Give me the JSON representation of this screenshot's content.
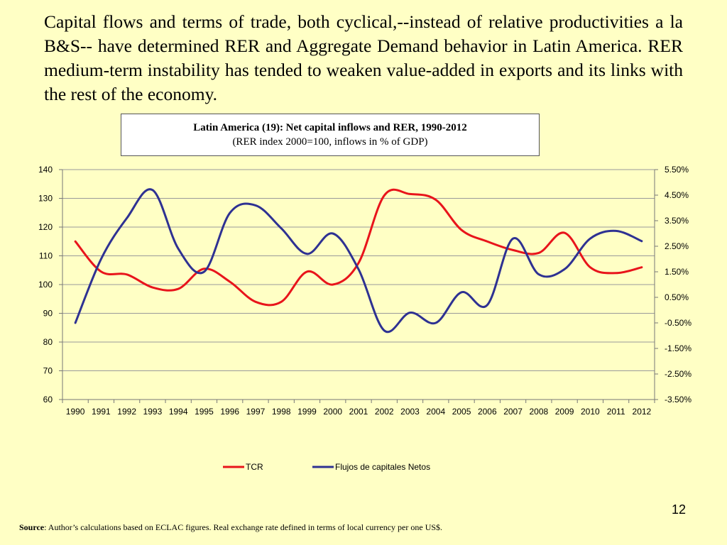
{
  "slide": {
    "intro_text": "Capital flows and terms of trade, both cyclical,--instead of relative productivities a la B&S-- have determined RER and Aggregate Demand behavior in Latin America. RER medium-term instability has tended to weaken value-added in exports and its links with the rest of the economy.",
    "page_number": "12",
    "source_label": "Source",
    "source_text": ": Author’s calculations based on ECLAC figures. Real exchange rate defined in terms of local currency  per one US$."
  },
  "chart_data": {
    "type": "line",
    "title": "Latin America (19):  Net capital inflows and  RER, 1990-2012",
    "subtitle": "(RER index 2000=100, inflows in % of GDP)",
    "categories": [
      "1990",
      "1991",
      "1992",
      "1993",
      "1994",
      "1995",
      "1996",
      "1997",
      "1998",
      "1999",
      "2000",
      "2001",
      "2002",
      "2003",
      "2004",
      "2005",
      "2006",
      "2007",
      "2008",
      "2009",
      "2010",
      "2011",
      "2012"
    ],
    "y_left": {
      "ylim": [
        60,
        140
      ],
      "ticks": [
        "60",
        "70",
        "80",
        "90",
        "100",
        "110",
        "120",
        "130",
        "140"
      ]
    },
    "y_right": {
      "ylim": [
        -3.5,
        5.5
      ],
      "ticks": [
        "-3.50%",
        "-2.50%",
        "-1.50%",
        "-0.50%",
        "0.50%",
        "1.50%",
        "2.50%",
        "3.50%",
        "4.50%",
        "5.50%"
      ]
    },
    "series": [
      {
        "name": "TCR",
        "axis": "left",
        "color": "#E8141B",
        "values": [
          115,
          104.5,
          103.5,
          99,
          98.5,
          105.5,
          101,
          94,
          94,
          104.5,
          100,
          107.5,
          131,
          131.5,
          129.5,
          119,
          115,
          112,
          111,
          118,
          106,
          104,
          106
        ]
      },
      {
        "name": "Flujos de capitales Netos",
        "axis": "right",
        "color": "#2E3192",
        "values": [
          -0.5,
          2.0,
          3.6,
          4.7,
          2.4,
          1.5,
          3.8,
          4.1,
          3.2,
          2.2,
          3.0,
          1.6,
          -0.8,
          -0.1,
          -0.5,
          0.7,
          0.2,
          2.8,
          1.4,
          1.6,
          2.8,
          3.1,
          2.7
        ]
      }
    ],
    "legend_position": "bottom",
    "grid": "horizontal"
  }
}
